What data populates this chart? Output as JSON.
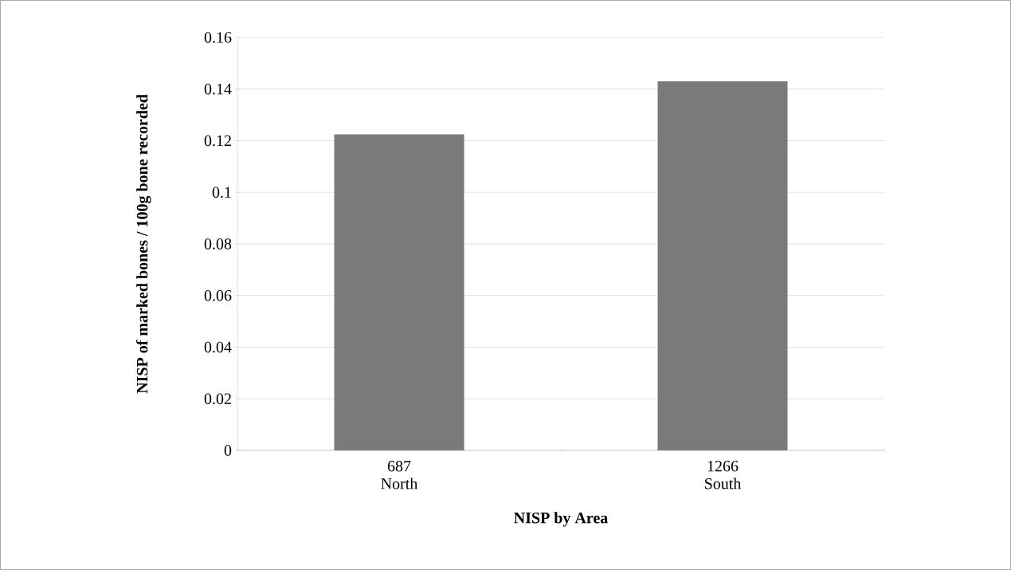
{
  "chart_data": {
    "type": "bar",
    "xlabel": "NISP by Area",
    "ylabel": "NISP of marked bones / 100g bone recorded",
    "categories": [
      "687 North",
      "1266 South"
    ],
    "values": [
      0.1225,
      0.143
    ],
    "color": "#7b7a78",
    "ylim": [
      0,
      0.16
    ],
    "yticks": [
      0,
      0.02,
      0.04,
      0.06,
      0.08,
      0.1,
      0.12,
      0.14,
      0.16
    ],
    "grid": "y"
  }
}
